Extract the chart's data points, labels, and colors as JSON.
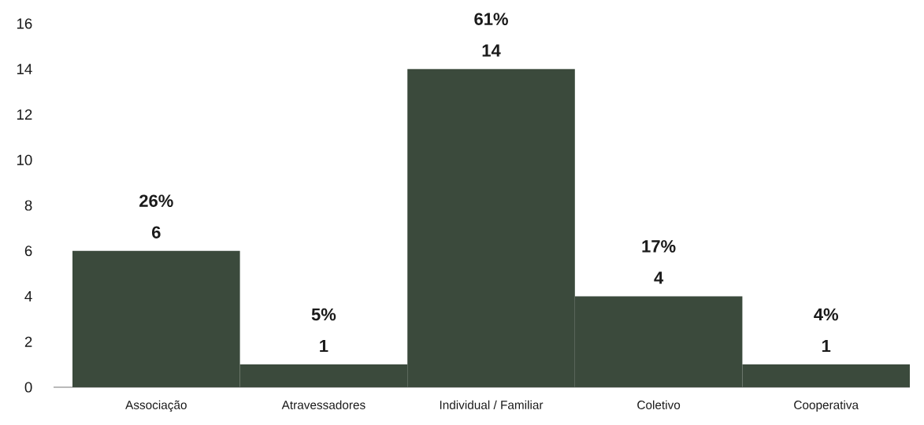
{
  "chart_data": {
    "type": "bar",
    "categories": [
      "Associação",
      "Atravessadores",
      "Individual / Familiar",
      "Coletivo",
      "Cooperativa"
    ],
    "values": [
      6,
      1,
      14,
      4,
      1
    ],
    "data_labels": true,
    "annotations": [
      {
        "text": "26%",
        "x": "Associação",
        "y": 6
      },
      {
        "text": "5%",
        "x": "Atravessadores",
        "y": 1
      },
      {
        "text": "61%",
        "x": "Individual / Familiar",
        "y": 14
      },
      {
        "text": "17%",
        "x": "Coletivo",
        "y": 4
      },
      {
        "text": "4%",
        "x": "Cooperativa",
        "y": 1
      }
    ],
    "color": "#3b4a3c",
    "ylim": [
      0,
      16
    ],
    "yticks": [
      0,
      2,
      4,
      6,
      8,
      10,
      12,
      14,
      16
    ],
    "grid": false
  }
}
